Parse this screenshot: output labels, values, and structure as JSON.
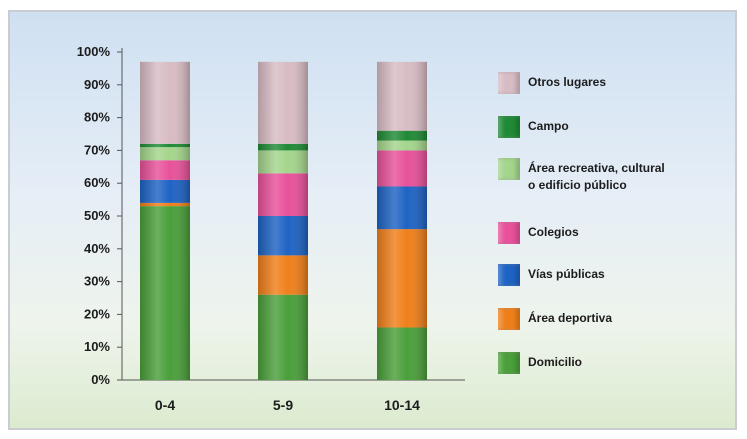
{
  "chart_data": {
    "type": "bar",
    "stacked": true,
    "categories": [
      "0-4",
      "5-9",
      "10-14"
    ],
    "y_ticks": [
      "100%",
      "90%",
      "80%",
      "70%",
      "60%",
      "50%",
      "40%",
      "30%",
      "20%",
      "10%",
      "0%"
    ],
    "ylim": [
      0,
      100
    ],
    "series": [
      {
        "name": "Domicilio",
        "color": "#4a9f3a",
        "values": [
          53,
          26,
          16
        ]
      },
      {
        "name": "Área deportiva",
        "color": "#ef7f1a",
        "values": [
          1,
          12,
          30
        ]
      },
      {
        "name": "Vías públicas",
        "color": "#1e63c4",
        "values": [
          7,
          12,
          13
        ]
      },
      {
        "name": "Colegios",
        "color": "#e8519a",
        "values": [
          6,
          13,
          11
        ]
      },
      {
        "name": "Área recreativa, cultural o edificio público",
        "color": "#a4d58c",
        "values": [
          4,
          7,
          3
        ]
      },
      {
        "name": "Campo",
        "color": "#1f8a35",
        "values": [
          1,
          2,
          3
        ]
      },
      {
        "name": "Otros lugares",
        "color": "#d8bcc4",
        "values": [
          25,
          25,
          21
        ]
      }
    ],
    "legend_order": [
      "Otros lugares",
      "Campo",
      "Área recreativa, cultural\no edificio público",
      "Colegios",
      "Vías públicas",
      "Área deportiva",
      "Domicilio"
    ],
    "legend_colors": [
      "#d8bcc4",
      "#1f8a35",
      "#a4d58c",
      "#e8519a",
      "#1e63c4",
      "#ef7f1a",
      "#4a9f3a"
    ],
    "legend_placement": "right"
  }
}
